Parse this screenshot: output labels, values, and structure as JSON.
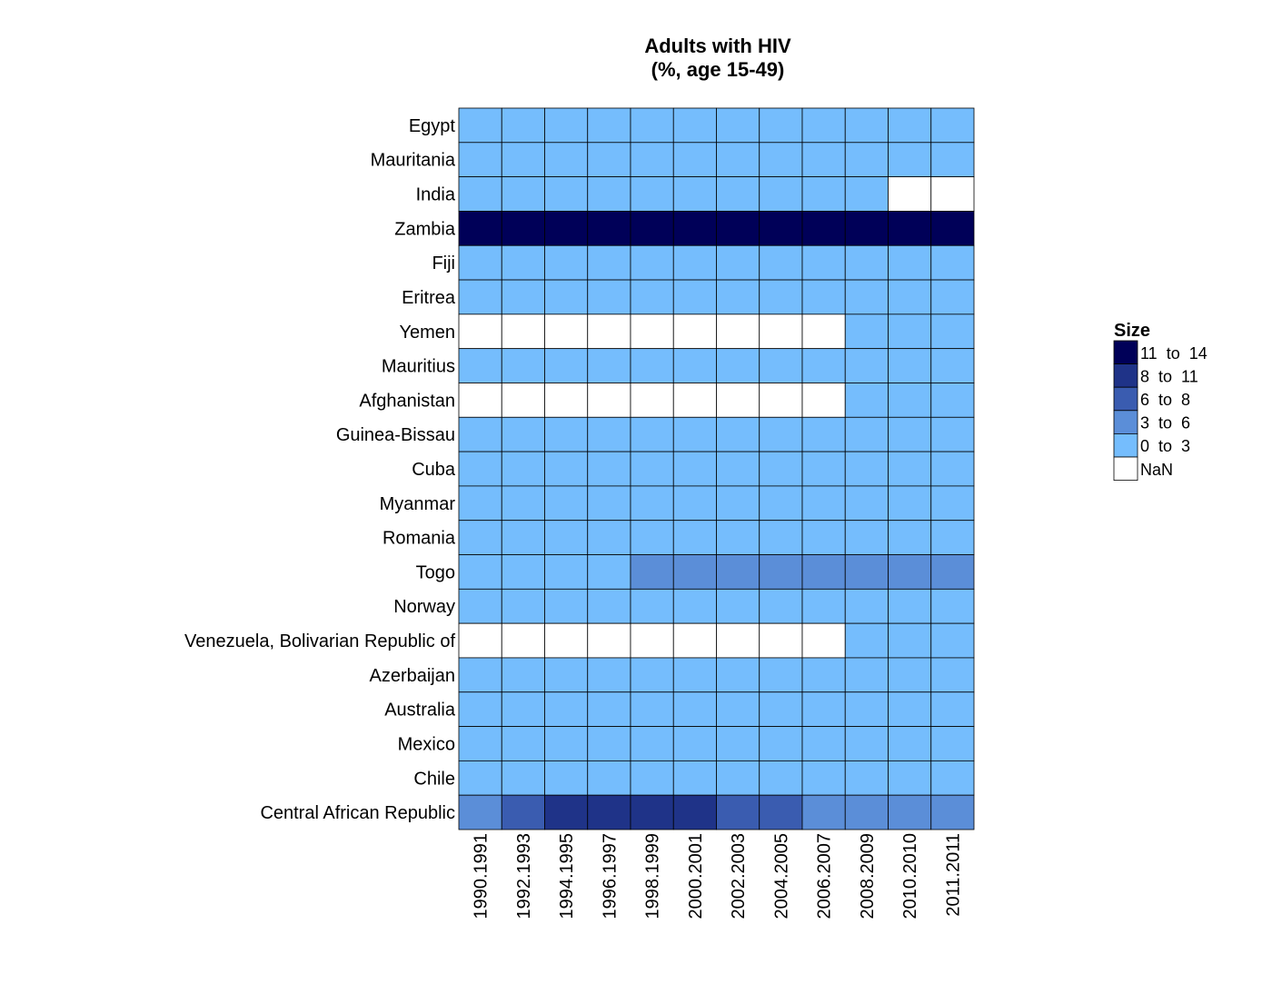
{
  "chart_data": {
    "type": "heatmap",
    "title_lines": [
      "Adults with HIV",
      "(%, age 15-49)"
    ],
    "rows": [
      "Egypt",
      "Mauritania",
      "India",
      "Zambia",
      "Fiji",
      "Eritrea",
      "Yemen",
      "Mauritius",
      "Afghanistan",
      "Guinea-Bissau",
      "Cuba",
      "Myanmar",
      "Romania",
      "Togo",
      "Norway",
      "Venezuela, Bolivarian Republic of",
      "Azerbaijan",
      "Australia",
      "Mexico",
      "Chile",
      "Central African Republic"
    ],
    "columns": [
      "1990.1991",
      "1992.1993",
      "1994.1995",
      "1996.1997",
      "1998.1999",
      "2000.2001",
      "2002.2003",
      "2004.2005",
      "2006.2007",
      "2008.2009",
      "2010.2010",
      "2011.2011"
    ],
    "bins": [
      {
        "label": "11  to  14",
        "color": "#000058"
      },
      {
        "label": "8  to  11",
        "color": "#1f3388"
      },
      {
        "label": "6  to  8",
        "color": "#3a5cb0"
      },
      {
        "label": "3  to  6",
        "color": "#5b8ed8"
      },
      {
        "label": "0  to  3",
        "color": "#75bdfd"
      },
      {
        "label": "NaN",
        "color": "#ffffff"
      }
    ],
    "cell_bins": [
      [
        4,
        4,
        4,
        4,
        4,
        4,
        4,
        4,
        4,
        4,
        4,
        4
      ],
      [
        4,
        4,
        4,
        4,
        4,
        4,
        4,
        4,
        4,
        4,
        4,
        4
      ],
      [
        4,
        4,
        4,
        4,
        4,
        4,
        4,
        4,
        4,
        4,
        5,
        5
      ],
      [
        0,
        0,
        0,
        0,
        0,
        0,
        0,
        0,
        0,
        0,
        0,
        0
      ],
      [
        4,
        4,
        4,
        4,
        4,
        4,
        4,
        4,
        4,
        4,
        4,
        4
      ],
      [
        4,
        4,
        4,
        4,
        4,
        4,
        4,
        4,
        4,
        4,
        4,
        4
      ],
      [
        5,
        5,
        5,
        5,
        5,
        5,
        5,
        5,
        5,
        4,
        4,
        4
      ],
      [
        4,
        4,
        4,
        4,
        4,
        4,
        4,
        4,
        4,
        4,
        4,
        4
      ],
      [
        5,
        5,
        5,
        5,
        5,
        5,
        5,
        5,
        5,
        4,
        4,
        4
      ],
      [
        4,
        4,
        4,
        4,
        4,
        4,
        4,
        4,
        4,
        4,
        4,
        4
      ],
      [
        4,
        4,
        4,
        4,
        4,
        4,
        4,
        4,
        4,
        4,
        4,
        4
      ],
      [
        4,
        4,
        4,
        4,
        4,
        4,
        4,
        4,
        4,
        4,
        4,
        4
      ],
      [
        4,
        4,
        4,
        4,
        4,
        4,
        4,
        4,
        4,
        4,
        4,
        4
      ],
      [
        4,
        4,
        4,
        4,
        3,
        3,
        3,
        3,
        3,
        3,
        3,
        3
      ],
      [
        4,
        4,
        4,
        4,
        4,
        4,
        4,
        4,
        4,
        4,
        4,
        4
      ],
      [
        5,
        5,
        5,
        5,
        5,
        5,
        5,
        5,
        5,
        4,
        4,
        4
      ],
      [
        4,
        4,
        4,
        4,
        4,
        4,
        4,
        4,
        4,
        4,
        4,
        4
      ],
      [
        4,
        4,
        4,
        4,
        4,
        4,
        4,
        4,
        4,
        4,
        4,
        4
      ],
      [
        4,
        4,
        4,
        4,
        4,
        4,
        4,
        4,
        4,
        4,
        4,
        4
      ],
      [
        4,
        4,
        4,
        4,
        4,
        4,
        4,
        4,
        4,
        4,
        4,
        4
      ],
      [
        3,
        2,
        1,
        1,
        1,
        1,
        2,
        2,
        3,
        3,
        3,
        3
      ]
    ],
    "legend": {
      "title": "Size",
      "position": "right"
    },
    "grid": false
  }
}
